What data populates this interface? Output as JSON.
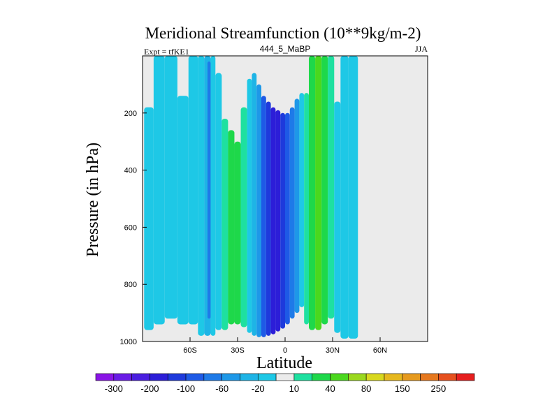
{
  "chart_data": {
    "type": "heatmap",
    "title": "Meridional Streamfunction (10**9kg/m-2)",
    "subtitle_left": "Expt = tfKE1",
    "subtitle_center": "444_5_MaBP",
    "subtitle_right": "JJA",
    "xlabel": "Latitude",
    "ylabel": "Pressure (in hPa)",
    "xlim": [
      -90,
      90
    ],
    "ylim": [
      1000,
      0
    ],
    "x_ticks": [
      {
        "value": -60,
        "label": "60S"
      },
      {
        "value": -30,
        "label": "30S"
      },
      {
        "value": 0,
        "label": "0"
      },
      {
        "value": 30,
        "label": "30N"
      },
      {
        "value": 60,
        "label": "60N"
      }
    ],
    "y_ticks": [
      {
        "value": 200,
        "label": "200"
      },
      {
        "value": 400,
        "label": "400"
      },
      {
        "value": 600,
        "label": "600"
      },
      {
        "value": 800,
        "label": "800"
      },
      {
        "value": 1000,
        "label": "1000"
      }
    ],
    "colorbar": {
      "colors": [
        "#8a14e6",
        "#6a1ce6",
        "#4a1ee0",
        "#2c1ed8",
        "#1e3adc",
        "#1e5ae6",
        "#1e7ae8",
        "#1e98e8",
        "#1eb4e6",
        "#1ec8e6",
        "#ebebeb",
        "#1ee0a0",
        "#1ed84a",
        "#4ad81e",
        "#9ad81e",
        "#d8d81e",
        "#e6b81e",
        "#e69a1e",
        "#e6781e",
        "#e6501e",
        "#e61e1e"
      ],
      "tick_labels": [
        "-300",
        "-200",
        "-100",
        "-60",
        "-20",
        "10",
        "40",
        "80",
        "150",
        "250"
      ],
      "tick_boundaries": [
        1,
        3,
        5,
        7,
        9,
        11,
        13,
        15,
        17,
        19
      ]
    },
    "cells": [
      {
        "lat_min": -89,
        "lat_max": -83,
        "p_min": 180,
        "p_max": 960,
        "level": 9
      },
      {
        "lat_min": -83,
        "lat_max": -76,
        "p_min": 0,
        "p_max": 940,
        "level": 9
      },
      {
        "lat_min": -76,
        "lat_max": -68,
        "p_min": 0,
        "p_max": 920,
        "level": 9
      },
      {
        "lat_min": -68,
        "lat_max": -61,
        "p_min": 140,
        "p_max": 940,
        "level": 9
      },
      {
        "lat_min": -61,
        "lat_max": -55,
        "p_min": 0,
        "p_max": 940,
        "level": 9
      },
      {
        "lat_min": -55,
        "lat_max": -51,
        "p_min": 0,
        "p_max": 980,
        "level": 9
      },
      {
        "lat_min": -51,
        "lat_max": -47,
        "p_min": 0,
        "p_max": 980,
        "level": 8
      },
      {
        "lat_min": -49,
        "lat_max": -47,
        "p_min": 20,
        "p_max": 920,
        "level": 6
      },
      {
        "lat_min": -47,
        "lat_max": -44,
        "p_min": 0,
        "p_max": 980,
        "level": 9
      },
      {
        "lat_min": -44,
        "lat_max": -40,
        "p_min": 60,
        "p_max": 960,
        "level": 9
      },
      {
        "lat_min": -40,
        "lat_max": -36,
        "p_min": 220,
        "p_max": 960,
        "level": 11
      },
      {
        "lat_min": -36,
        "lat_max": -32,
        "p_min": 260,
        "p_max": 940,
        "level": 12
      },
      {
        "lat_min": -32,
        "lat_max": -28,
        "p_min": 300,
        "p_max": 940,
        "level": 12
      },
      {
        "lat_min": -28,
        "lat_max": -24,
        "p_min": 180,
        "p_max": 950,
        "level": 11
      },
      {
        "lat_min": -24,
        "lat_max": -21,
        "p_min": 80,
        "p_max": 970,
        "level": 9
      },
      {
        "lat_min": -21,
        "lat_max": -18,
        "p_min": 60,
        "p_max": 980,
        "level": 8
      },
      {
        "lat_min": -18,
        "lat_max": -15,
        "p_min": 100,
        "p_max": 985,
        "level": 7
      },
      {
        "lat_min": -15,
        "lat_max": -12,
        "p_min": 140,
        "p_max": 985,
        "level": 5
      },
      {
        "lat_min": -12,
        "lat_max": -9,
        "p_min": 160,
        "p_max": 980,
        "level": 4
      },
      {
        "lat_min": -9,
        "lat_max": -6,
        "p_min": 180,
        "p_max": 975,
        "level": 3
      },
      {
        "lat_min": -6,
        "lat_max": -3,
        "p_min": 190,
        "p_max": 965,
        "level": 3
      },
      {
        "lat_min": -3,
        "lat_max": 0,
        "p_min": 200,
        "p_max": 955,
        "level": 4
      },
      {
        "lat_min": 0,
        "lat_max": 3,
        "p_min": 200,
        "p_max": 940,
        "level": 5
      },
      {
        "lat_min": 3,
        "lat_max": 6,
        "p_min": 180,
        "p_max": 920,
        "level": 6
      },
      {
        "lat_min": 6,
        "lat_max": 9,
        "p_min": 150,
        "p_max": 900,
        "level": 7
      },
      {
        "lat_min": 9,
        "lat_max": 12,
        "p_min": 130,
        "p_max": 880,
        "level": 9
      },
      {
        "lat_min": 12,
        "lat_max": 15,
        "p_min": 130,
        "p_max": 940,
        "level": 11
      },
      {
        "lat_min": 15,
        "lat_max": 19,
        "p_min": 0,
        "p_max": 960,
        "level": 12
      },
      {
        "lat_min": 19,
        "lat_max": 23,
        "p_min": 0,
        "p_max": 960,
        "level": 13
      },
      {
        "lat_min": 23,
        "lat_max": 27,
        "p_min": 0,
        "p_max": 940,
        "level": 12
      },
      {
        "lat_min": 27,
        "lat_max": 31,
        "p_min": 0,
        "p_max": 920,
        "level": 11
      },
      {
        "lat_min": 31,
        "lat_max": 35,
        "p_min": 160,
        "p_max": 970,
        "level": 9
      },
      {
        "lat_min": 35,
        "lat_max": 40,
        "p_min": 0,
        "p_max": 990,
        "level": 9
      },
      {
        "lat_min": 40,
        "lat_max": 46,
        "p_min": 0,
        "p_max": 990,
        "level": 9
      }
    ]
  }
}
